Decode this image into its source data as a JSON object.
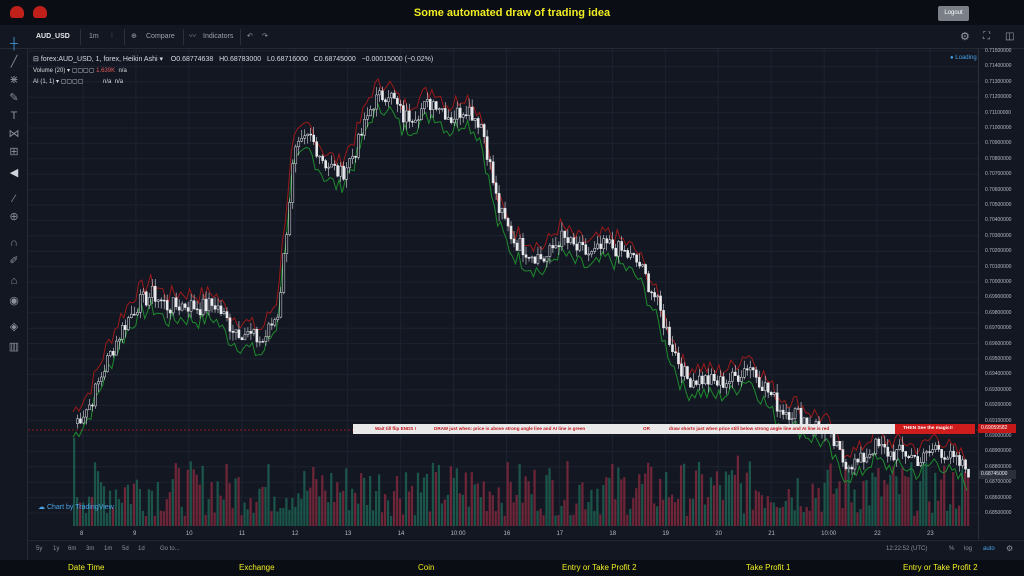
{
  "app": {
    "title": "Some automated draw of trading idea",
    "logout_label": "Logout"
  },
  "toolbar": {
    "symbol": "AUD_USD",
    "interval": "1m",
    "compare_label": "Compare",
    "indicators_label": "Indicators"
  },
  "legend": {
    "symbol": "forex:AUD_USD, 1, forex, Heikin Ashi",
    "open": "O0.68774638",
    "high": "H0.68783000",
    "low": "L0.68716000",
    "close": "C0.68745000",
    "change": "−0.00015000 (−0.02%)",
    "volume_label": "Volume (20)",
    "volume_value": "1.639K",
    "volume_na": "n/a",
    "ai_label": "AI (1, 1)",
    "ai_na1": "n/a",
    "ai_na2": "n/a",
    "loading": "Loading"
  },
  "y_axis": {
    "ticks": [
      "0.71500000",
      "0.71400000",
      "0.71300000",
      "0.71200000",
      "0.71100000",
      "0.71000000",
      "0.70900000",
      "0.70800000",
      "0.70700000",
      "0.70600000",
      "0.70500000",
      "0.70400000",
      "0.70300000",
      "0.70200000",
      "0.70100000",
      "0.70000000",
      "0.69900000",
      "0.69800000",
      "0.69700000",
      "0.69600000",
      "0.69500000",
      "0.69400000",
      "0.69300000",
      "0.69200000",
      "0.69100000",
      "0.69000000",
      "0.68900000",
      "0.68800000",
      "0.68700000",
      "0.68600000",
      "0.68500000"
    ],
    "line_price": "0.69059582",
    "last_price": "0.68745000"
  },
  "x_axis": {
    "labels": [
      "8",
      "9",
      "10",
      "11",
      "12",
      "13",
      "14",
      "10:00",
      "16",
      "17",
      "18",
      "19",
      "20",
      "21",
      "10:00",
      "22",
      "23"
    ]
  },
  "banner": {
    "part1": "Wait till flip ENDS  !",
    "part2": "DRAW just when:  price is above strong angle line and AI line is green",
    "part3": "OR",
    "part4": "draw shorts just when price still below strong angle line and AI line is red",
    "part5": "THEN See the magic!!"
  },
  "watermark": "Chart by TradingView",
  "bottom": {
    "ranges": [
      "5y",
      "1y",
      "6m",
      "3m",
      "1m",
      "5d",
      "1d"
    ],
    "goto": "Go to...",
    "time": "12:22:52 (UTC)",
    "pct": "%",
    "log": "log",
    "auto": "auto"
  },
  "footer": {
    "labels": [
      "Date Time",
      "Exchange",
      "Coin",
      "Entry or Take Profit 2",
      "Take Profit 1",
      "Entry or Take Profit 2"
    ]
  },
  "chart_data": {
    "type": "candlestick",
    "title": "forex:AUD_USD, 1, forex, Heikin Ashi",
    "x": [
      "8",
      "9",
      "10",
      "11",
      "12",
      "13",
      "14",
      "10:00",
      "16",
      "17",
      "18",
      "19",
      "20",
      "21",
      "10:00",
      "22",
      "23"
    ],
    "ylim": [
      0.6845,
      0.7155
    ],
    "close_path": [
      0.6905,
      0.6918,
      0.6945,
      0.6968,
      0.6985,
      0.6992,
      0.6983,
      0.6985,
      0.6983,
      0.6985,
      0.697,
      0.6965,
      0.696,
      0.698,
      0.7085,
      0.7098,
      0.708,
      0.7072,
      0.709,
      0.712,
      0.7128,
      0.711,
      0.7115,
      0.7122,
      0.711,
      0.7118,
      0.7105,
      0.705,
      0.7028,
      0.702,
      0.7015,
      0.703,
      0.7022,
      0.7018,
      0.7025,
      0.702,
      0.7012,
      0.699,
      0.696,
      0.6935,
      0.6935,
      0.6932,
      0.6935,
      0.6945,
      0.693,
      0.6915,
      0.6912,
      0.6905,
      0.69,
      0.688,
      0.6878,
      0.689,
      0.6885,
      0.6885,
      0.688,
      0.689,
      0.688,
      0.6874
    ],
    "volume_label": "Volume (20)"
  }
}
